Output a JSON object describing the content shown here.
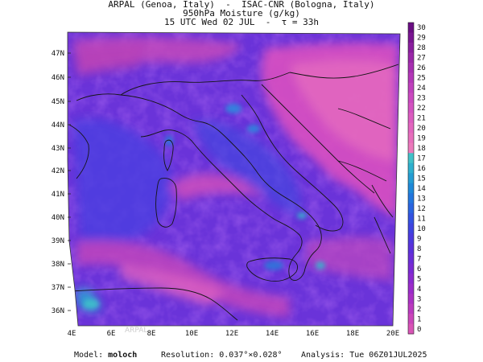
{
  "header": {
    "line1": "ARPAL (Genoa, Italy)  -  ISAC-CNR (Bologna, Italy)",
    "line2": "950hPa Moisture (g/kg)",
    "line3": "15 UTC Wed 02 JUL  -  τ = 33h"
  },
  "map": {
    "lat_labels": [
      "47N",
      "46N",
      "45N",
      "44N",
      "43N",
      "42N",
      "41N",
      "40N",
      "39N",
      "38N",
      "37N",
      "36N"
    ],
    "lon_labels": [
      "4E",
      "6E",
      "8E",
      "10E",
      "12E",
      "14E",
      "16E",
      "18E",
      "20E"
    ],
    "watermark": "ARPAL"
  },
  "colorbar": {
    "values": [
      "30",
      "29",
      "28",
      "27",
      "26",
      "25",
      "24",
      "23",
      "22",
      "21",
      "20",
      "19",
      "18",
      "17",
      "16",
      "15",
      "14",
      "13",
      "12",
      "11",
      "10",
      "9",
      "8",
      "7",
      "6",
      "5",
      "4",
      "3",
      "2",
      "1",
      "0"
    ],
    "colors": [
      "#6a0d83",
      "#7a1592",
      "#8a1e9e",
      "#9a27a8",
      "#a72fb1",
      "#b437b8",
      "#c040bd",
      "#cb49c0",
      "#d452c1",
      "#dc5cc0",
      "#e365bf",
      "#e86fbd",
      "#ec7abc",
      "#41c1c9",
      "#2fb0cf",
      "#259dd4",
      "#1f89d9",
      "#2376de",
      "#2a64e0",
      "#3352e1",
      "#3e44e0",
      "#4c39de",
      "#5a31db",
      "#6a2dd8",
      "#7a2ad4",
      "#8b2acf",
      "#9b2cca",
      "#ab31c4",
      "#bb3abf",
      "#cb46ba",
      "#d954b6"
    ]
  },
  "footer": {
    "model_label": "Model:",
    "model_value": "moloch",
    "resolution_label": "Resolution:",
    "resolution_value": "0.037°×0.028°",
    "analysis_label": "Analysis:",
    "analysis_value": "Tue 06Z01JUL2025"
  }
}
